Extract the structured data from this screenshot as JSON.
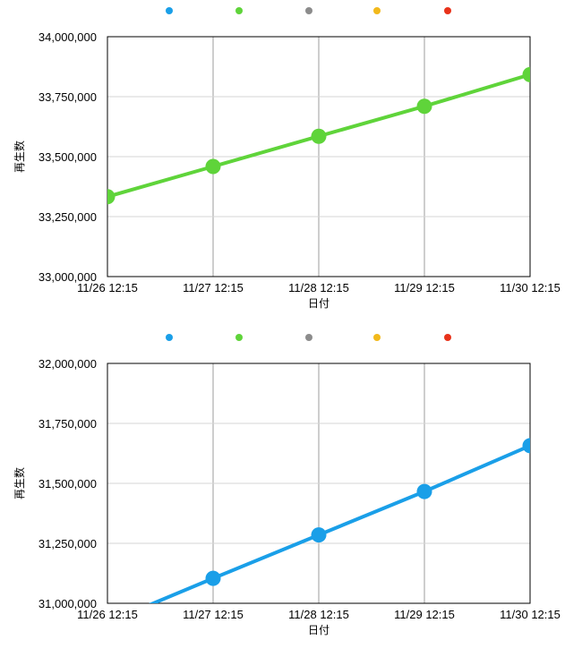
{
  "legend_colors": [
    "#1a9fe8",
    "#5fd43a",
    "#8c8c8c",
    "#f2b91b",
    "#e8321a"
  ],
  "chart_data": [
    {
      "type": "line",
      "title": "",
      "xlabel": "日付",
      "ylabel": "再生数",
      "categories": [
        "11/26 12:15",
        "11/27 12:15",
        "11/28 12:15",
        "11/29 12:15",
        "11/30 12:15"
      ],
      "y_tick_labels": [
        "34,000,000",
        "33,750,000",
        "33,500,000",
        "33,250,000",
        "33,000,000"
      ],
      "ylim": [
        33000000,
        34000000
      ],
      "grid": true,
      "legend_placement": "top",
      "series": [
        {
          "color": "#5fd43a",
          "values": [
            33333000,
            33459000,
            33585000,
            33710000,
            33842000
          ]
        }
      ]
    },
    {
      "type": "line",
      "title": "",
      "xlabel": "日付",
      "ylabel": "再生数",
      "categories": [
        "11/26 12:15",
        "11/27 12:15",
        "11/28 12:15",
        "11/29 12:15",
        "11/30 12:15"
      ],
      "y_tick_labels": [
        "32,000,000",
        "31,750,000",
        "31,500,000",
        "31,250,000",
        "31,000,000"
      ],
      "ylim": [
        31000000,
        32000000
      ],
      "grid": true,
      "legend_placement": "top",
      "series": [
        {
          "color": "#1a9fe8",
          "values": [
            30920000,
            31104000,
            31285000,
            31466000,
            31657000
          ]
        }
      ]
    }
  ]
}
